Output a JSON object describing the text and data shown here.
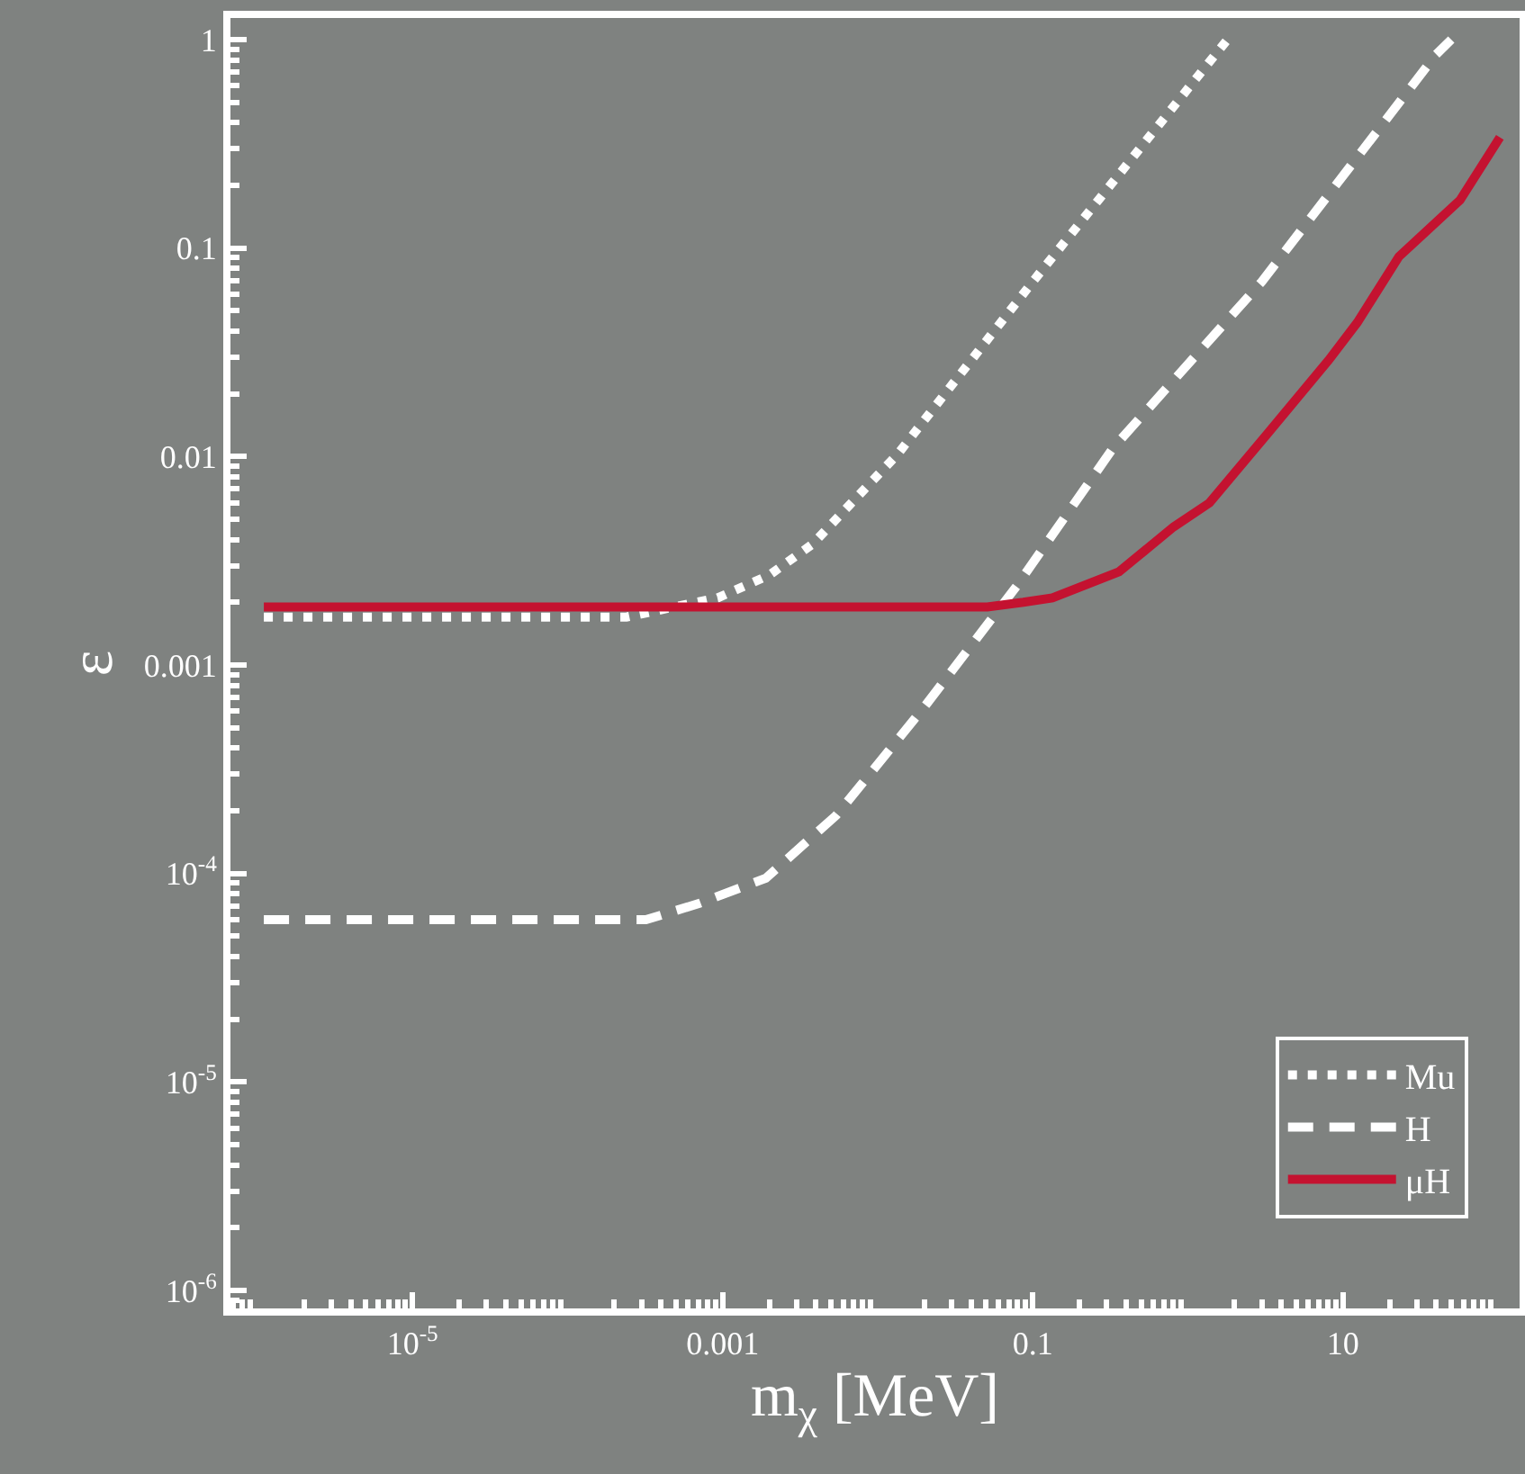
{
  "chart_data": {
    "type": "line",
    "xlabel": "m$_{χ}$ [MeV]",
    "ylabel": "ε",
    "log": "xy",
    "grid": false,
    "legend": "bottom right",
    "xlim": [
      6.7e-07,
      138
    ],
    "ylim": [
      8.2e-07,
      1.27
    ],
    "xticks": [
      {
        "value": 1e-05,
        "label": "10$^{-5}$"
      },
      0.001,
      0.1,
      10
    ],
    "yticks": [
      {
        "value": 1e-06,
        "label": "10$^{-6}$"
      },
      {
        "value": 1e-05,
        "label": "10$^{-5}$"
      },
      {
        "value": 0.0001,
        "label": "10$^{-4}$"
      },
      0.001,
      0.01,
      0.1,
      1
    ],
    "series": [
      {
        "name": "Mu",
        "color": "#ffffff",
        "line_style": "dotted",
        "x": [
          1.1e-06,
          0.00024,
          0.00093,
          0.002,
          0.0038,
          0.0135,
          0.1,
          1.8
        ],
        "values": [
          0.0017,
          0.0017,
          0.0021,
          0.0027,
          0.0038,
          0.0103,
          0.069,
          1
        ]
      },
      {
        "name": "H",
        "color": "#ffffff",
        "line_style": "dashed",
        "x": [
          1.1e-06,
          0.00032,
          0.00071,
          0.0019,
          0.0054,
          0.02,
          0.079,
          0.33,
          3,
          40,
          50
        ],
        "values": [
          6e-05,
          6e-05,
          7.2e-05,
          9.5e-05,
          0.00019,
          0.00063,
          0.0024,
          0.011,
          0.069,
          0.85,
          1
        ]
      },
      {
        "name": "μH",
        "color": "#c41230",
        "line_style": "solid",
        "x": [
          1.1e-06,
          0.051,
          0.087,
          0.134,
          0.36,
          0.81,
          1.38,
          3.3,
          8.1,
          12.4,
          23,
          57,
          103
        ],
        "values": [
          0.0019,
          0.0019,
          0.002,
          0.0021,
          0.0028,
          0.0046,
          0.006,
          0.013,
          0.029,
          0.044,
          0.091,
          0.17,
          0.34
        ]
      }
    ]
  }
}
